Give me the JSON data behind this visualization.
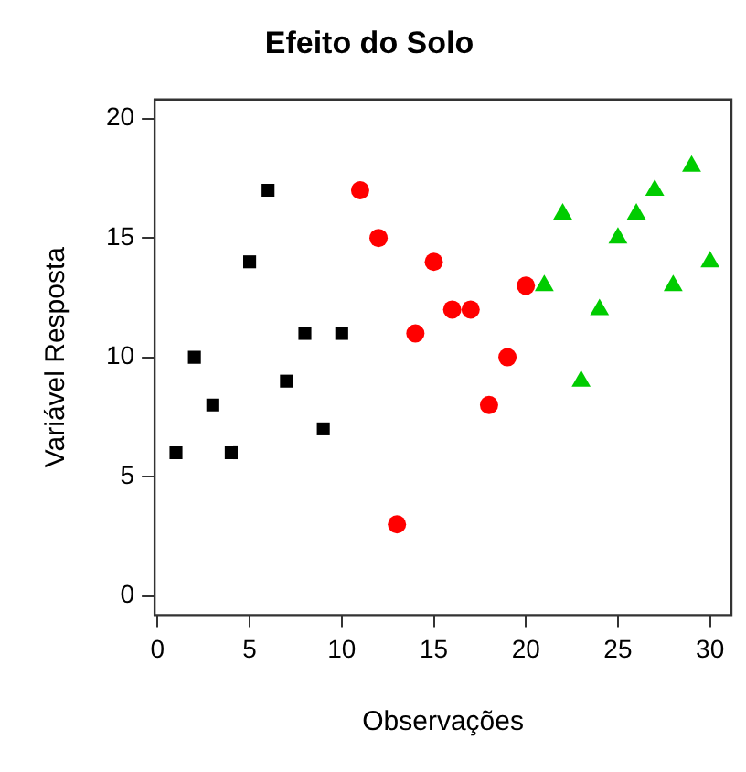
{
  "chart_data": {
    "type": "scatter",
    "title": "Efeito do Solo",
    "xlabel": "Observações",
    "ylabel": "Variável Resposta",
    "xlim": [
      -0.16,
      31.16
    ],
    "xticks": [
      0,
      5,
      10,
      15,
      20,
      25,
      30
    ],
    "ylim": [
      -0.8,
      20.8
    ],
    "yticks": [
      0,
      5,
      10,
      15,
      20
    ],
    "grid": false,
    "legend": false,
    "series": [
      {
        "color": "#000000",
        "marker": "square",
        "x": [
          1,
          2,
          3,
          4,
          5,
          6,
          7,
          8,
          9,
          10
        ],
        "values": [
          6,
          10,
          8,
          6,
          14,
          17,
          9,
          11,
          7,
          11
        ]
      },
      {
        "color": "#ff0000",
        "marker": "circle",
        "x": [
          11,
          12,
          13,
          14,
          15,
          16,
          17,
          18,
          19,
          20
        ],
        "values": [
          17,
          15,
          3,
          11,
          14,
          12,
          12,
          8,
          10,
          13
        ]
      },
      {
        "color": "#00cc00",
        "marker": "triangle",
        "x": [
          21,
          22,
          23,
          24,
          25,
          26,
          27,
          28,
          29,
          30
        ],
        "values": [
          13,
          16,
          9,
          12,
          15,
          16,
          17,
          13,
          18,
          14
        ]
      }
    ]
  }
}
